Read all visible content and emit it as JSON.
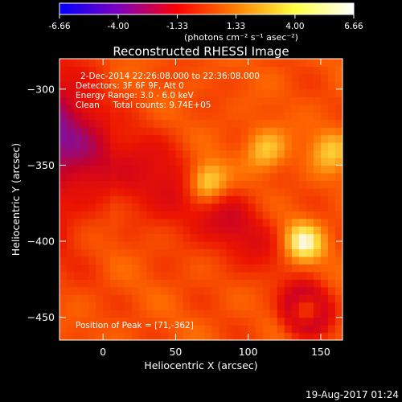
{
  "colorbar": {
    "tick_labels": [
      "-6.66",
      "-4.00",
      "-1.33",
      "1.33",
      "4.00",
      "6.66"
    ],
    "tick_values": [
      -6.66,
      -4.0,
      -1.33,
      1.33,
      4.0,
      6.66
    ],
    "range": [
      -6.66,
      6.66
    ],
    "units": "(photons cm⁻² s⁻¹ asec⁻²)",
    "colormap_stops": [
      "#0000ff",
      "#8000c0",
      "#ff0000",
      "#ff8000",
      "#ffff40",
      "#ffffff"
    ]
  },
  "chart_data": {
    "type": "heatmap",
    "title": "Reconstructed RHESSI Image",
    "xlabel": "Heliocentric X (arcsec)",
    "ylabel": "Heliocentric Y (arcsec)",
    "xlim": [
      -30,
      165
    ],
    "ylim": [
      -465,
      -280
    ],
    "xticks": [
      0,
      50,
      100,
      150
    ],
    "yticks": [
      -300,
      -350,
      -400,
      -450
    ],
    "value_range": [
      -6.66,
      6.66
    ],
    "sources": [
      {
        "x": 71,
        "y": -362,
        "peak": 6.66
      },
      {
        "x": 137,
        "y": -401,
        "peak": 6.3
      },
      {
        "x": 112,
        "y": -340,
        "peak": 4.8
      },
      {
        "x": 157,
        "y": -340,
        "peak": 4.6
      }
    ],
    "annotations": [
      "2-Dec-2014 22:26:08.000 to 22:36:08.000",
      "Detectors: 3F 6F 9F, Att 0",
      "Energy Range: 3.0 - 6.0 keV",
      "Clean     Total counts: 9.74E+05",
      "Position of Peak = [71,-362]"
    ]
  },
  "footer": {
    "timestamp": "19-Aug-2017 01:24"
  }
}
